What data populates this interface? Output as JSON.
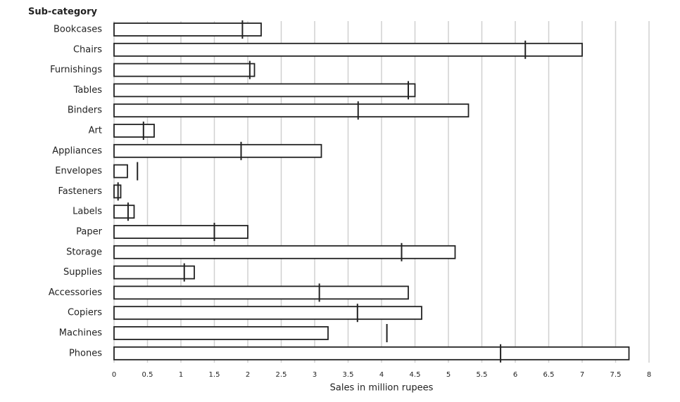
{
  "chart_data": {
    "type": "bullet",
    "y_axis_label": "Sub-category",
    "x_axis_label": "Sales in million rupees",
    "categories": [
      "Bookcases",
      "Chairs",
      "Furnishings",
      "Tables",
      "Binders",
      "Art",
      "Appliances",
      "Envelopes",
      "Fasteners",
      "Labels",
      "Paper",
      "Storage",
      "Supplies",
      "Accessories",
      "Copiers",
      "Machines",
      "Phones"
    ],
    "values": [
      2.2,
      7.0,
      2.1,
      4.5,
      5.3,
      0.6,
      3.1,
      0.2,
      0.1,
      0.3,
      2.0,
      5.1,
      1.2,
      4.4,
      4.6,
      3.2,
      7.7
    ],
    "markers": [
      1.92,
      6.15,
      2.03,
      4.4,
      3.65,
      0.44,
      1.9,
      0.35,
      0.06,
      0.21,
      1.5,
      4.3,
      1.05,
      3.07,
      3.64,
      4.08,
      5.78
    ],
    "color": "#ffffff",
    "xlim": [
      0,
      8
    ],
    "xticks": [
      0,
      0.5,
      1,
      1.5,
      2,
      2.5,
      3,
      3.5,
      4,
      4.5,
      5,
      5.5,
      6,
      6.5,
      7,
      7.5,
      8
    ],
    "grid": true
  }
}
